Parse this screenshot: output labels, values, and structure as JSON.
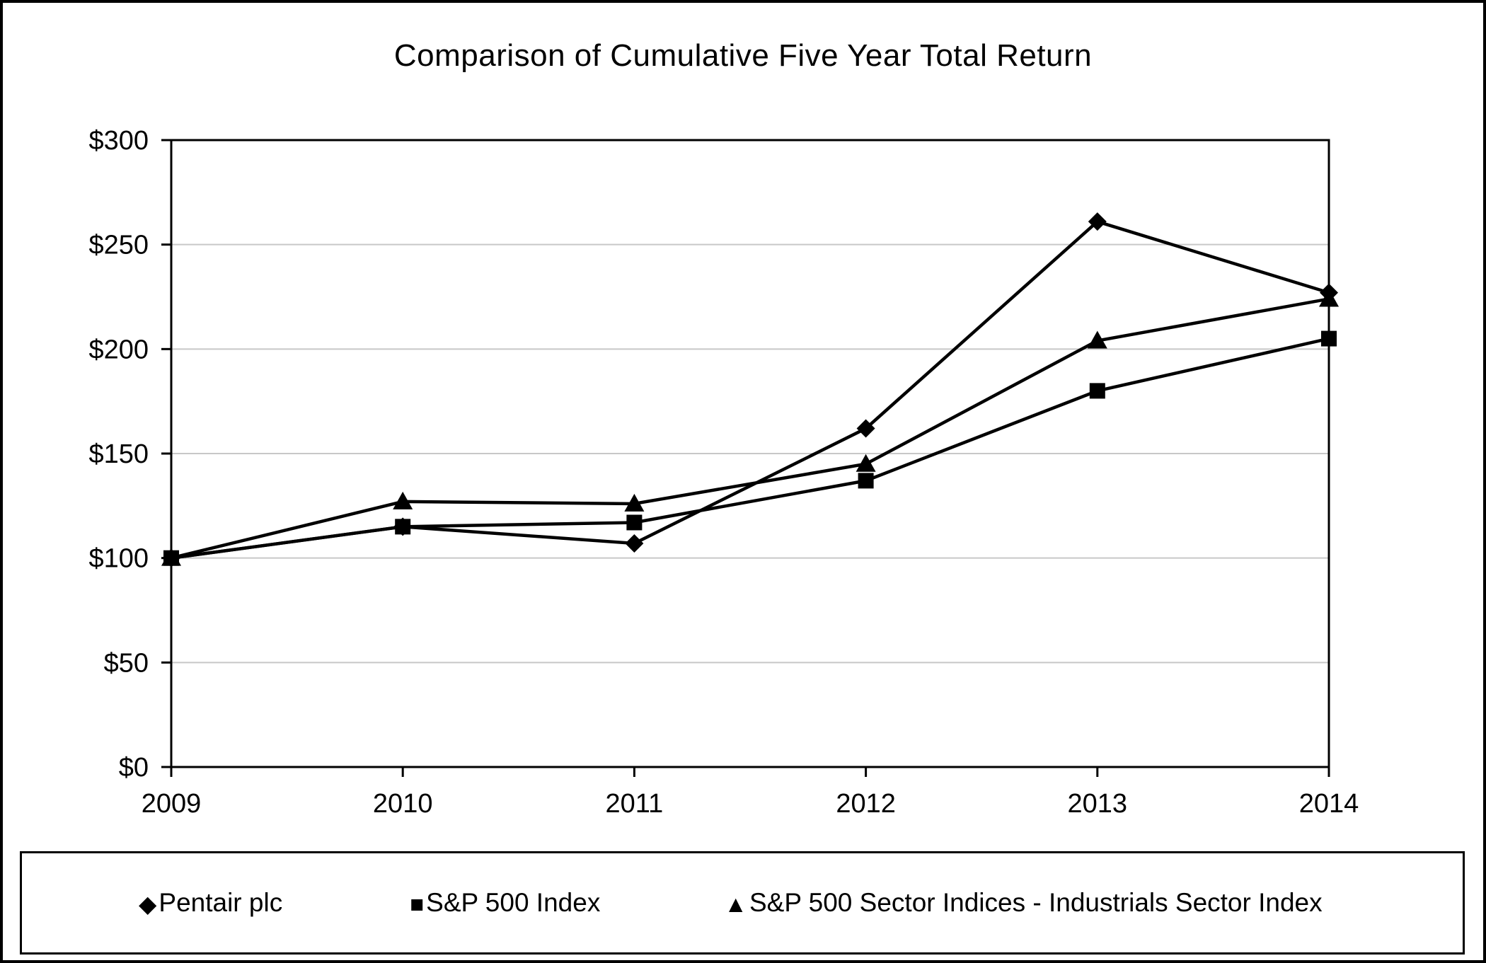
{
  "chart_data": {
    "type": "line",
    "title": "Comparison of Cumulative Five Year Total Return",
    "x": [
      "2009",
      "2010",
      "2011",
      "2012",
      "2013",
      "2014"
    ],
    "series": [
      {
        "name": "Pentair plc",
        "marker": "diamond",
        "values": [
          100,
          115,
          107,
          162,
          261,
          227
        ]
      },
      {
        "name": "S&P 500 Index",
        "marker": "square",
        "values": [
          100,
          115,
          117,
          137,
          180,
          205
        ]
      },
      {
        "name": "S&P 500 Sector Indices - Industrials Sector Index",
        "marker": "triangle",
        "values": [
          100,
          127,
          126,
          145,
          204,
          224
        ]
      }
    ],
    "xlabel": "",
    "ylabel": "",
    "ylim": [
      0,
      300
    ],
    "yticks": [
      {
        "value": 0,
        "label": "$0"
      },
      {
        "value": 50,
        "label": "$50"
      },
      {
        "value": 100,
        "label": "$100"
      },
      {
        "value": 150,
        "label": "$150"
      },
      {
        "value": 200,
        "label": "$200"
      },
      {
        "value": 250,
        "label": "$250"
      },
      {
        "value": 300,
        "label": "$300"
      }
    ],
    "grid": "horizontal",
    "legend_position": "bottom",
    "marker_glyphs": {
      "diamond": "◆",
      "square": "■",
      "triangle": "▲"
    },
    "colors": {
      "series": "#000000",
      "grid": "#c8c8c8",
      "axis": "#000000",
      "background": "#ffffff",
      "border": "#000000"
    }
  }
}
